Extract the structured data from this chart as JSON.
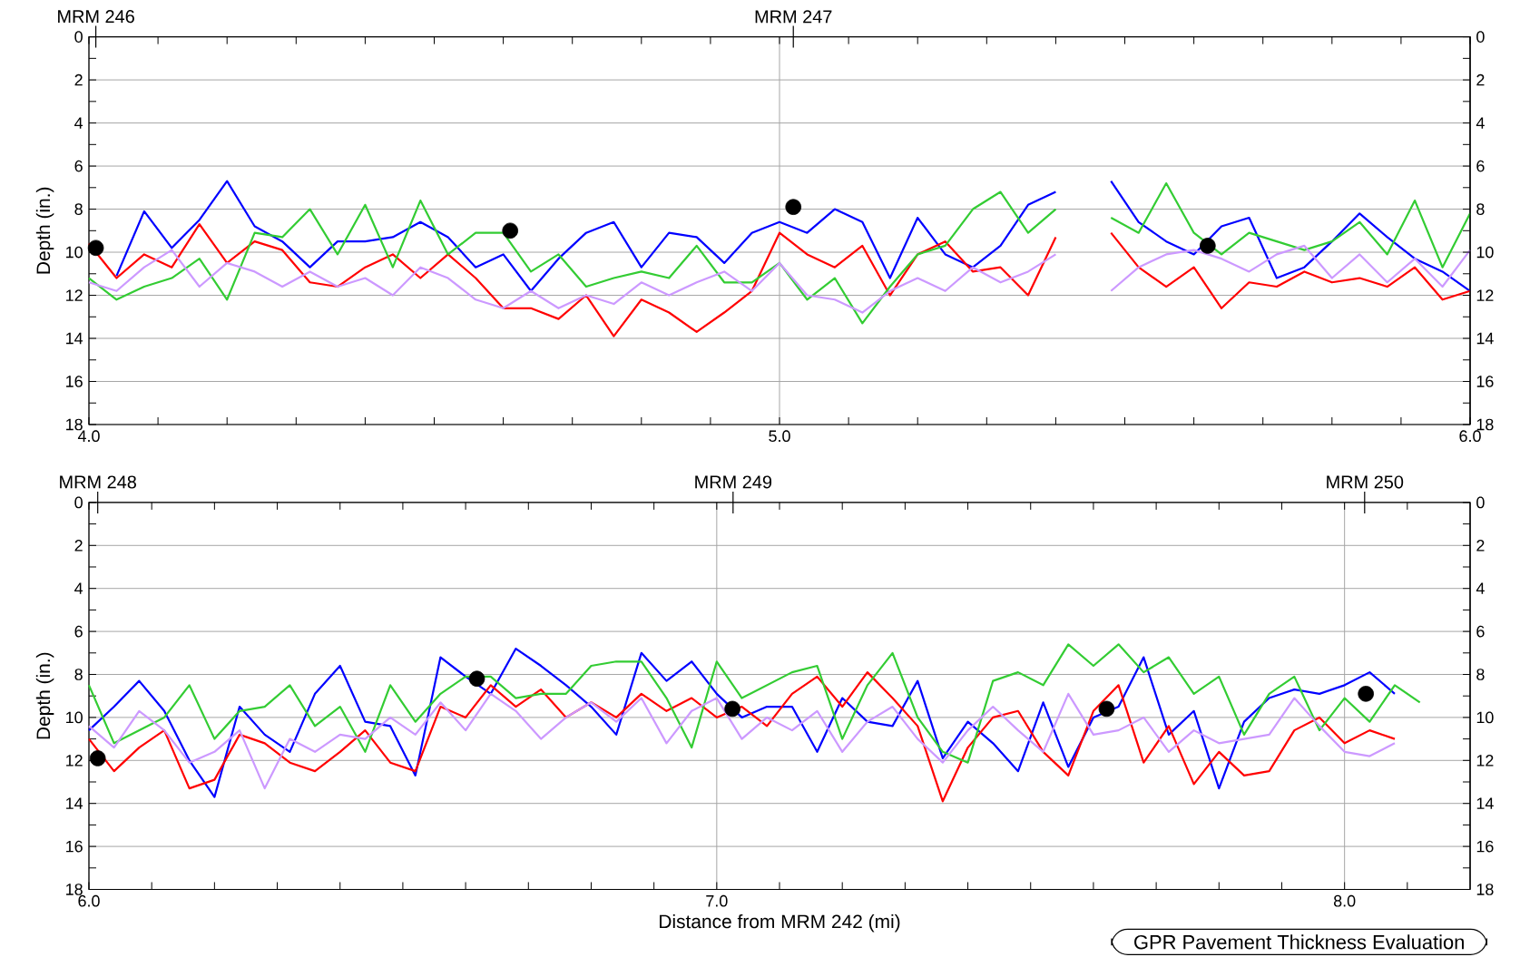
{
  "chart_data": [
    {
      "type": "line",
      "ylabel": "Depth (in.)",
      "grid": true,
      "x": [
        4.0,
        4.04,
        4.08,
        4.12,
        4.16,
        4.2,
        4.24,
        4.28,
        4.32,
        4.36,
        4.4,
        4.44,
        4.48,
        4.52,
        4.56,
        4.6,
        4.64,
        4.68,
        4.72,
        4.76,
        4.8,
        4.84,
        4.88,
        4.92,
        4.96,
        5.0,
        5.04,
        5.08,
        5.12,
        5.16,
        5.2,
        5.24,
        5.28,
        5.32,
        5.36,
        5.4,
        5.44,
        5.48,
        5.52,
        5.56,
        5.6,
        5.64,
        5.68,
        5.72,
        5.76,
        5.8,
        5.84,
        5.88,
        5.92,
        5.96,
        6.0
      ],
      "series": [
        {
          "color": "#0000ff",
          "values": [
            null,
            11.1,
            8.1,
            9.8,
            8.5,
            6.7,
            8.8,
            9.5,
            10.7,
            9.5,
            9.5,
            9.3,
            8.6,
            9.3,
            10.7,
            10.1,
            11.8,
            10.3,
            9.1,
            8.6,
            10.7,
            9.1,
            9.3,
            10.5,
            9.1,
            8.6,
            9.1,
            8.0,
            8.6,
            11.2,
            8.4,
            10.1,
            10.7,
            9.7,
            7.8,
            7.2,
            null,
            6.7,
            8.6,
            9.5,
            10.1,
            8.8,
            8.4,
            11.2,
            10.7,
            9.5,
            8.2,
            9.3,
            10.3,
            10.9,
            11.8
          ]
        },
        {
          "color": "#ff0000",
          "values": [
            9.6,
            11.2,
            10.1,
            10.7,
            8.7,
            10.5,
            9.5,
            9.9,
            11.4,
            11.6,
            10.7,
            10.1,
            11.2,
            10.1,
            11.2,
            12.6,
            12.6,
            13.1,
            12.0,
            13.9,
            12.2,
            12.8,
            13.7,
            12.8,
            11.8,
            9.1,
            10.1,
            10.7,
            9.7,
            12.0,
            10.1,
            9.5,
            10.9,
            10.7,
            12.0,
            9.3,
            null,
            9.1,
            10.7,
            11.6,
            10.7,
            12.6,
            11.4,
            11.6,
            10.9,
            11.4,
            11.2,
            11.6,
            10.7,
            12.2,
            11.8
          ]
        },
        {
          "color": "#33cc33",
          "values": [
            11.2,
            12.2,
            11.6,
            11.2,
            10.3,
            12.2,
            9.1,
            9.3,
            8.0,
            10.1,
            7.8,
            10.7,
            7.6,
            10.1,
            9.1,
            9.1,
            10.9,
            10.1,
            11.6,
            11.2,
            10.9,
            11.2,
            9.7,
            11.4,
            11.4,
            10.5,
            12.2,
            11.2,
            13.3,
            11.6,
            10.1,
            9.7,
            8.0,
            7.2,
            9.1,
            8.0,
            null,
            8.4,
            9.1,
            6.8,
            9.1,
            10.1,
            9.1,
            9.5,
            9.9,
            9.5,
            8.6,
            10.1,
            7.6,
            10.7,
            8.2
          ]
        },
        {
          "color": "#cc99ff",
          "values": [
            11.4,
            11.8,
            10.7,
            9.9,
            11.6,
            10.5,
            10.9,
            11.6,
            10.9,
            11.6,
            11.2,
            12.0,
            10.7,
            11.2,
            12.2,
            12.6,
            11.8,
            12.6,
            12.0,
            12.4,
            11.4,
            12.0,
            11.4,
            10.9,
            11.8,
            10.5,
            12.0,
            12.2,
            12.8,
            11.8,
            11.2,
            11.8,
            10.7,
            11.4,
            10.9,
            10.1,
            null,
            11.8,
            10.7,
            10.1,
            9.9,
            10.3,
            10.9,
            10.1,
            9.7,
            11.2,
            10.1,
            11.4,
            10.3,
            11.6,
            9.9
          ]
        },
        {
          "type": "scatter",
          "marker": "circle",
          "color": "#000000",
          "x": [
            4.01,
            4.61,
            5.02,
            5.62
          ],
          "values": [
            9.8,
            9.0,
            7.9,
            9.7
          ]
        }
      ],
      "xlim": [
        4.0,
        6.0
      ],
      "xticks": [
        {
          "value": 4.0,
          "label": "4.0"
        },
        {
          "value": 4.1,
          "label": null
        },
        {
          "value": 4.2,
          "label": null
        },
        {
          "value": 4.3,
          "label": null
        },
        {
          "value": 4.4,
          "label": null
        },
        {
          "value": 4.5,
          "label": null
        },
        {
          "value": 4.6,
          "label": null
        },
        {
          "value": 4.7,
          "label": null
        },
        {
          "value": 4.8,
          "label": null
        },
        {
          "value": 4.9,
          "label": null
        },
        {
          "value": 5.0,
          "label": "5.0"
        },
        {
          "value": 5.1,
          "label": null
        },
        {
          "value": 5.2,
          "label": null
        },
        {
          "value": 5.3,
          "label": null
        },
        {
          "value": 5.4,
          "label": null
        },
        {
          "value": 5.5,
          "label": null
        },
        {
          "value": 5.6,
          "label": null
        },
        {
          "value": 5.7,
          "label": null
        },
        {
          "value": 5.8,
          "label": null
        },
        {
          "value": 5.9,
          "label": null
        },
        {
          "value": 6.0,
          "label": "6.0"
        }
      ],
      "ref_lines": [
        {
          "axis": "x",
          "value": 4.01,
          "label": "MRM 246"
        },
        {
          "axis": "x",
          "value": 5.02,
          "label": "MRM 247"
        }
      ],
      "ylim": [
        18,
        0
      ],
      "yticks": [
        0,
        {
          "value": 1,
          "label": null
        },
        2,
        {
          "value": 3,
          "label": null
        },
        4,
        {
          "value": 5,
          "label": null
        },
        6,
        {
          "value": 7,
          "label": null
        },
        8,
        {
          "value": 9,
          "label": null
        },
        10,
        {
          "value": 11,
          "label": null
        },
        12,
        {
          "value": 13,
          "label": null
        },
        14,
        {
          "value": 15,
          "label": null
        },
        16,
        {
          "value": 17,
          "label": null
        },
        18
      ],
      "y2lim": [
        18,
        0
      ],
      "y2ticks": [
        0,
        {
          "value": 1,
          "label": null
        },
        2,
        {
          "value": 3,
          "label": null
        },
        4,
        {
          "value": 5,
          "label": null
        },
        6,
        {
          "value": 7,
          "label": null
        },
        8,
        {
          "value": 9,
          "label": null
        },
        10,
        {
          "value": 11,
          "label": null
        },
        12,
        {
          "value": 13,
          "label": null
        },
        14,
        {
          "value": 15,
          "label": null
        },
        16,
        {
          "value": 17,
          "label": null
        },
        18
      ]
    },
    {
      "type": "line",
      "ylabel": "Depth (in.)",
      "xlabel": "Distance from MRM 242  (mi)",
      "grid": true,
      "annotations": [
        "GPR Pavement Thickness Evaluation"
      ],
      "x": [
        6.0,
        6.04,
        6.08,
        6.12,
        6.16,
        6.2,
        6.24,
        6.28,
        6.32,
        6.36,
        6.4,
        6.44,
        6.48,
        6.52,
        6.56,
        6.6,
        6.64,
        6.68,
        6.72,
        6.76,
        6.8,
        6.84,
        6.88,
        6.92,
        6.96,
        7.0,
        7.04,
        7.08,
        7.12,
        7.16,
        7.2,
        7.24,
        7.28,
        7.32,
        7.36,
        7.4,
        7.44,
        7.48,
        7.52,
        7.56,
        7.6,
        7.64,
        7.68,
        7.72,
        7.76,
        7.8,
        7.84,
        7.88,
        7.92,
        7.96,
        8.0,
        8.04,
        8.08,
        8.12
      ],
      "series": [
        {
          "color": "#0000ff",
          "values": [
            10.6,
            9.5,
            8.3,
            9.7,
            12.0,
            13.7,
            9.5,
            10.8,
            11.6,
            8.9,
            7.6,
            10.2,
            10.4,
            12.7,
            7.2,
            8.1,
            8.9,
            6.8,
            7.6,
            8.5,
            9.5,
            10.8,
            7.0,
            8.3,
            7.4,
            8.9,
            10.0,
            9.5,
            9.5,
            11.6,
            9.1,
            10.2,
            10.4,
            8.3,
            11.9,
            10.2,
            11.2,
            12.5,
            9.3,
            12.3,
            10.0,
            9.5,
            7.2,
            10.8,
            9.7,
            13.3,
            10.2,
            9.1,
            8.7,
            8.9,
            8.5,
            7.9,
            8.9,
            null
          ]
        },
        {
          "color": "#ff0000",
          "values": [
            11.0,
            12.5,
            11.4,
            10.6,
            13.3,
            12.9,
            10.8,
            11.2,
            12.1,
            12.5,
            11.6,
            10.6,
            12.1,
            12.5,
            9.5,
            10.0,
            8.5,
            9.5,
            8.7,
            10.0,
            9.3,
            10.0,
            8.9,
            9.7,
            9.1,
            10.0,
            9.5,
            10.4,
            8.9,
            8.1,
            9.5,
            7.9,
            9.1,
            10.4,
            13.9,
            11.4,
            10.0,
            9.7,
            11.6,
            12.7,
            9.7,
            8.5,
            12.1,
            10.4,
            13.1,
            11.6,
            12.7,
            12.5,
            10.6,
            10.0,
            11.2,
            10.6,
            11.0,
            null
          ]
        },
        {
          "color": "#33cc33",
          "values": [
            8.5,
            11.2,
            10.6,
            10.0,
            8.5,
            11.0,
            9.7,
            9.5,
            8.5,
            10.4,
            9.5,
            11.6,
            8.5,
            10.2,
            8.9,
            8.1,
            8.1,
            9.1,
            8.9,
            8.9,
            7.6,
            7.4,
            7.4,
            9.1,
            11.4,
            7.4,
            9.1,
            8.5,
            7.9,
            7.6,
            11.0,
            8.5,
            7.0,
            10.0,
            11.6,
            12.1,
            8.3,
            7.9,
            8.5,
            6.6,
            7.6,
            6.6,
            7.9,
            7.2,
            8.9,
            8.1,
            10.8,
            8.9,
            8.1,
            10.6,
            9.1,
            10.2,
            8.5,
            9.3
          ]
        },
        {
          "color": "#cc99ff",
          "values": [
            10.4,
            11.4,
            9.7,
            10.6,
            12.1,
            11.6,
            10.6,
            13.3,
            11.0,
            11.6,
            10.8,
            11.0,
            10.0,
            10.8,
            9.3,
            10.6,
            8.9,
            9.7,
            11.0,
            10.0,
            9.3,
            10.2,
            9.1,
            11.2,
            9.7,
            9.1,
            11.0,
            10.0,
            10.6,
            9.7,
            11.6,
            10.2,
            9.5,
            11.0,
            12.1,
            10.6,
            9.5,
            10.6,
            11.6,
            8.9,
            10.8,
            10.6,
            10.0,
            11.6,
            10.6,
            11.2,
            11.0,
            10.8,
            9.1,
            10.4,
            11.6,
            11.8,
            11.2,
            null
          ]
        },
        {
          "type": "scatter",
          "marker": "circle",
          "color": "#000000",
          "x": [
            6.014,
            6.618,
            7.025,
            7.621,
            8.034
          ],
          "values": [
            11.9,
            8.2,
            9.6,
            9.6,
            8.9
          ]
        }
      ],
      "xlim": [
        6.0,
        8.2
      ],
      "xticks": [
        {
          "value": 6.0,
          "label": "6.0"
        },
        {
          "value": 6.1,
          "label": null
        },
        {
          "value": 6.2,
          "label": null
        },
        {
          "value": 6.3,
          "label": null
        },
        {
          "value": 6.4,
          "label": null
        },
        {
          "value": 6.5,
          "label": null
        },
        {
          "value": 6.6,
          "label": null
        },
        {
          "value": 6.7,
          "label": null
        },
        {
          "value": 6.8,
          "label": null
        },
        {
          "value": 6.9,
          "label": null
        },
        {
          "value": 7.0,
          "label": "7.0"
        },
        {
          "value": 7.1,
          "label": null
        },
        {
          "value": 7.2,
          "label": null
        },
        {
          "value": 7.3,
          "label": null
        },
        {
          "value": 7.4,
          "label": null
        },
        {
          "value": 7.5,
          "label": null
        },
        {
          "value": 7.6,
          "label": null
        },
        {
          "value": 7.7,
          "label": null
        },
        {
          "value": 7.8,
          "label": null
        },
        {
          "value": 7.9,
          "label": null
        },
        {
          "value": 8.0,
          "label": "8.0"
        },
        {
          "value": 8.1,
          "label": null
        }
      ],
      "ref_lines": [
        {
          "axis": "x",
          "value": 6.014,
          "label": "MRM 248"
        },
        {
          "axis": "x",
          "value": 7.026,
          "label": "MRM 249"
        },
        {
          "axis": "x",
          "value": 8.032,
          "label": "MRM 250"
        }
      ],
      "ylim": [
        18,
        0
      ],
      "yticks": [
        0,
        {
          "value": 1,
          "label": null
        },
        2,
        {
          "value": 3,
          "label": null
        },
        4,
        {
          "value": 5,
          "label": null
        },
        6,
        {
          "value": 7,
          "label": null
        },
        8,
        {
          "value": 9,
          "label": null
        },
        10,
        {
          "value": 11,
          "label": null
        },
        12,
        {
          "value": 13,
          "label": null
        },
        14,
        {
          "value": 15,
          "label": null
        },
        16,
        {
          "value": 17,
          "label": null
        },
        18
      ],
      "y2lim": [
        18,
        0
      ],
      "y2ticks": [
        0,
        {
          "value": 1,
          "label": null
        },
        2,
        {
          "value": 3,
          "label": null
        },
        4,
        {
          "value": 5,
          "label": null
        },
        6,
        {
          "value": 7,
          "label": null
        },
        8,
        {
          "value": 9,
          "label": null
        },
        10,
        {
          "value": 11,
          "label": null
        },
        12,
        {
          "value": 13,
          "label": null
        },
        14,
        {
          "value": 15,
          "label": null
        },
        16,
        {
          "value": 17,
          "label": null
        },
        18
      ]
    }
  ]
}
